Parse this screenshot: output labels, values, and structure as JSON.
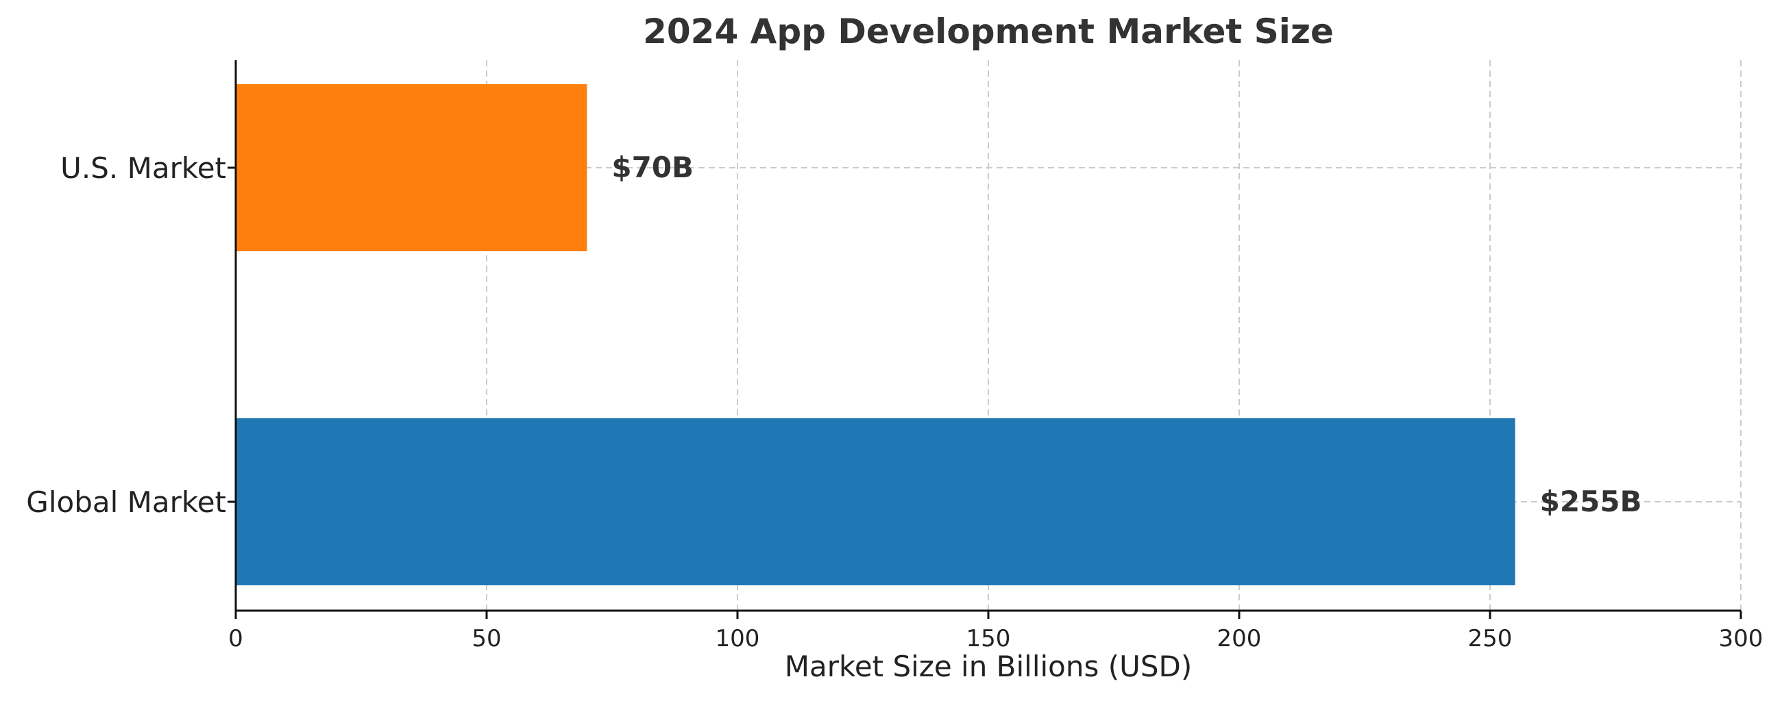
{
  "chart_data": {
    "type": "bar",
    "orientation": "horizontal",
    "title": "2024 App Development Market Size",
    "xlabel": "Market Size in Billions (USD)",
    "ylabel": "",
    "xlim": [
      0,
      300
    ],
    "xticks": [
      0,
      50,
      100,
      150,
      200,
      250,
      300
    ],
    "grid": true,
    "categories": [
      "U.S. Market",
      "Global Market"
    ],
    "values": [
      70,
      255
    ],
    "data_labels": [
      "$70B",
      "$255B"
    ],
    "colors": [
      "#ff7f0e",
      "#1f77b4"
    ]
  }
}
